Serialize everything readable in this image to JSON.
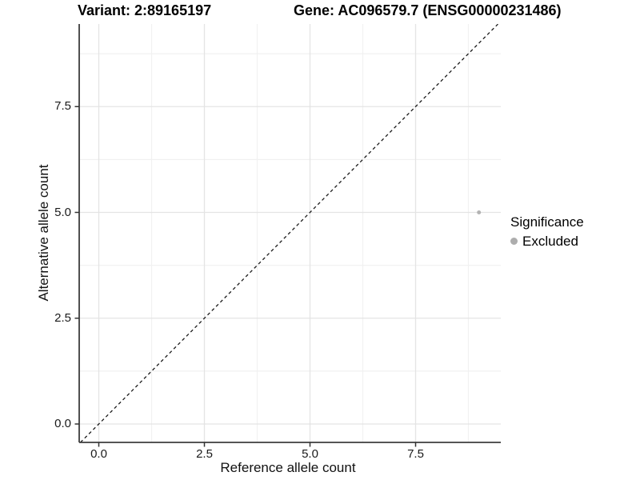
{
  "titles": {
    "variant": "Variant: 2:89165197",
    "gene": "Gene: AC096579.7 (ENSG00000231486)"
  },
  "chart_data": {
    "type": "scatter",
    "title_left": "Variant: 2:89165197",
    "title_right": "Gene: AC096579.7 (ENSG00000231486)",
    "xlabel": "Reference allele count",
    "ylabel": "Alternative allele count",
    "xlim": [
      -0.45,
      9.45
    ],
    "ylim": [
      -0.45,
      9.45
    ],
    "xtick_labels": [
      "0.0",
      "2.5",
      "5.0",
      "7.5"
    ],
    "xtick_values": [
      0,
      2.5,
      5,
      7.5
    ],
    "ytick_labels": [
      "0.0",
      "2.5",
      "5.0",
      "7.5"
    ],
    "ytick_values": [
      0,
      2.5,
      5,
      7.5
    ],
    "minor_xticks": [
      1.25,
      3.75,
      6.25,
      8.75
    ],
    "minor_yticks": [
      1.25,
      3.75,
      6.25,
      8.75
    ],
    "grid": true,
    "points": [
      {
        "x": 9,
        "y": 5,
        "series": "Excluded"
      }
    ],
    "reference_line": {
      "type": "abline",
      "slope": 1,
      "intercept": 0,
      "style": "dashed"
    },
    "legend": {
      "title": "Significance",
      "position": "right",
      "entries": [
        {
          "label": "Excluded",
          "color": "#adadad"
        }
      ]
    },
    "colors": {
      "point": "#b3b3b3",
      "legend_key": "#a6a6a6",
      "grid_major": "#e4e4e4",
      "grid_minor": "#f1f1f1",
      "axis_line": "#3d3d3d",
      "tick_mark": "#333333",
      "reference_line": "#1a1a1a",
      "background": "#ffffff"
    }
  }
}
